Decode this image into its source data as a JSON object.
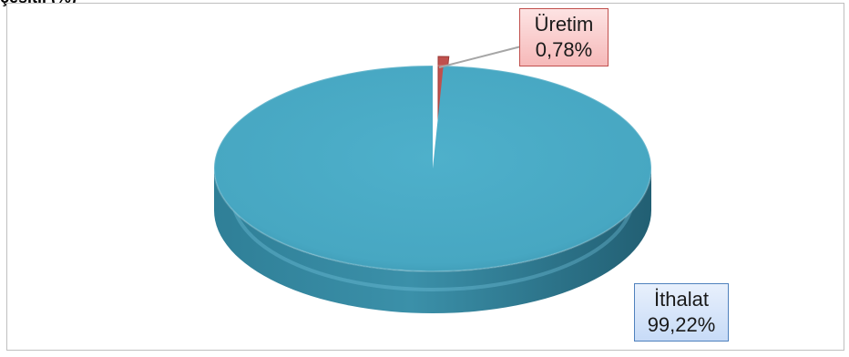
{
  "header": {
    "clipped_title": "çeşitli (%)"
  },
  "chart_data": {
    "type": "pie",
    "slices": [
      {
        "name": "Üretim",
        "value": 0.78,
        "label": "0,78%",
        "color": "#c0504d"
      },
      {
        "name": "İthalat",
        "value": 99.22,
        "label": "99,22%",
        "color": "#4bacc6"
      }
    ]
  }
}
